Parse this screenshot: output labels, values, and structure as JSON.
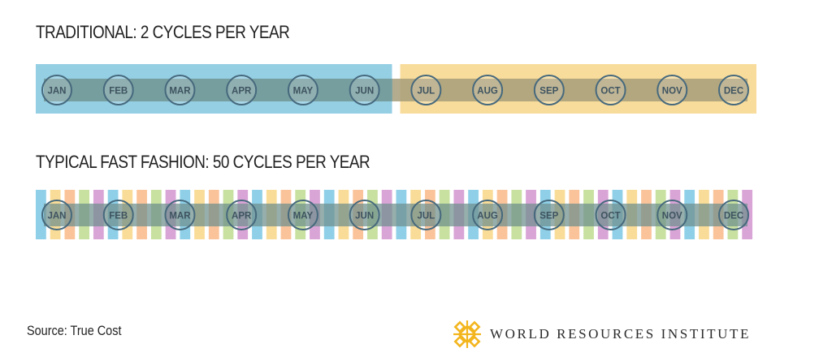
{
  "colors": {
    "traditional_first_half": "#95cfe4",
    "traditional_second_half": "#f8dc9c",
    "band": "#6e8f8c",
    "band_second_half": "#a79d7a",
    "month_circle_stroke": "#46697d",
    "month_text": "#3e5360",
    "fast_cycle_palette": [
      "#8fd0e8",
      "#f9dc98",
      "#fbc39a",
      "#c8e0a0",
      "#d9a4d6"
    ],
    "logo": "#f3b51d"
  },
  "traditional": {
    "title": "TRADITIONAL: 2 CYCLES PER YEAR",
    "cycle_count": 2,
    "months": [
      "JAN",
      "FEB",
      "MAR",
      "APR",
      "MAY",
      "JUN",
      "JUL",
      "AUG",
      "SEP",
      "OCT",
      "NOV",
      "DEC"
    ]
  },
  "fast_fashion": {
    "title": "TYPICAL FAST FASHION: 50 CYCLES PER YEAR",
    "cycle_count": 50,
    "months": [
      "JAN",
      "FEB",
      "MAR",
      "APR",
      "MAY",
      "JUN",
      "JUL",
      "AUG",
      "SEP",
      "OCT",
      "NOV",
      "DEC"
    ]
  },
  "footer": {
    "source": "Source: True Cost",
    "brand_icon": "wri-snowflake-logo-icon",
    "brand_name": "WORLD RESOURCES INSTITUTE"
  }
}
